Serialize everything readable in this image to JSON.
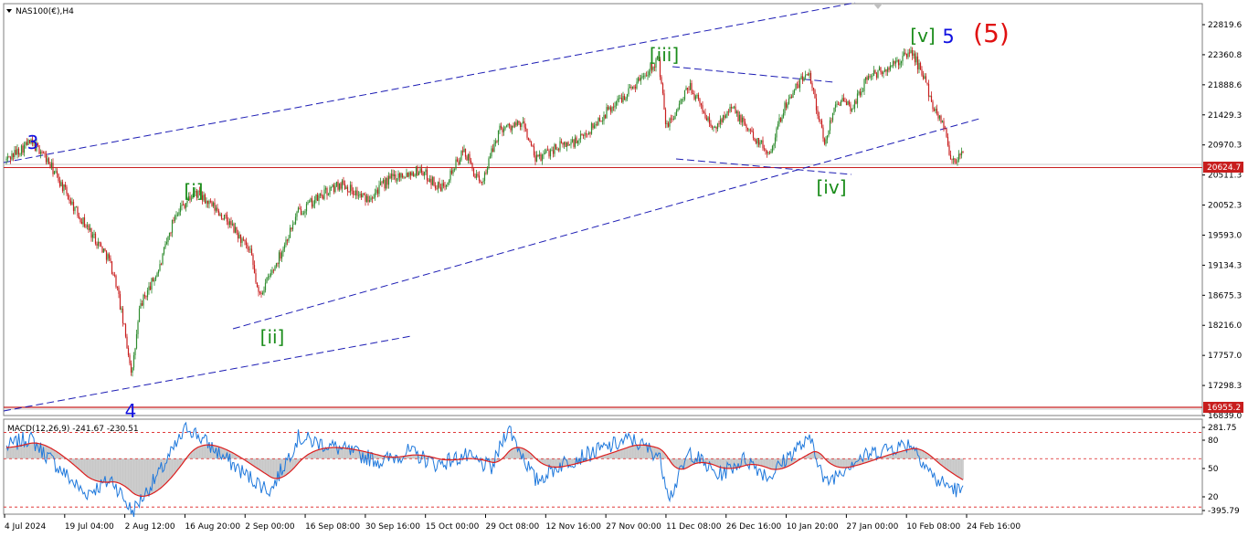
{
  "window": {
    "symbol_label": "NAS100(€),H4",
    "macd_label": "MACD(12,26,9) -241.67 -230.51"
  },
  "colors": {
    "bull_candle": "#2e8b2e",
    "bear_candle": "#c81e1e",
    "channel_line": "#1c1cb4",
    "price_line": "#c81e1e",
    "macd_line": "#1e78dc",
    "signal_line": "#dc1e1e",
    "macd_hist": "#c8c8c8",
    "level_dotted": "#dc1e1e"
  },
  "chart_data": [
    {
      "type": "candlestick",
      "timeframe": "H4",
      "price_axis": {
        "ylim": [
          16611.0,
          22966.0
        ],
        "ticks": [
          "22819.6",
          "22360.8",
          "21888.6",
          "21429.3",
          "20970.3",
          "20511.3",
          "20052.3",
          "19593.0",
          "19134.3",
          "18675.3",
          "18216.0",
          "17757.0",
          "17298.3",
          "16839.0"
        ]
      },
      "time_axis": {
        "ticks": [
          "4 Jul 2024",
          "19 Jul 04:00",
          "2 Aug 12:00",
          "16 Aug 20:00",
          "2 Sep 00:00",
          "16 Sep 08:00",
          "30 Sep 16:00",
          "15 Oct 00:00",
          "29 Oct 08:00",
          "12 Nov 16:00",
          "27 Nov 00:00",
          "11 Dec 08:00",
          "26 Dec 16:00",
          "10 Jan 20:00",
          "27 Jan 00:00",
          "10 Feb 08:00",
          "24 Feb 16:00"
        ]
      },
      "price_path": [
        {
          "date": "2024-07-04",
          "close": 20550
        },
        {
          "date": "2024-07-10",
          "close": 20820
        },
        {
          "date": "2024-07-13",
          "close": 20700
        },
        {
          "date": "2024-07-17",
          "close": 20300
        },
        {
          "date": "2024-07-22",
          "close": 19750
        },
        {
          "date": "2024-07-26",
          "close": 19400
        },
        {
          "date": "2024-07-30",
          "close": 19050
        },
        {
          "date": "2024-08-01",
          "close": 18650
        },
        {
          "date": "2024-08-05",
          "close": 17250
        },
        {
          "date": "2024-08-07",
          "close": 18300
        },
        {
          "date": "2024-08-12",
          "close": 18900
        },
        {
          "date": "2024-08-16",
          "close": 19750
        },
        {
          "date": "2024-08-21",
          "close": 20050
        },
        {
          "date": "2024-08-26",
          "close": 19800
        },
        {
          "date": "2024-08-30",
          "close": 19550
        },
        {
          "date": "2024-09-04",
          "close": 19100
        },
        {
          "date": "2024-09-06",
          "close": 18450
        },
        {
          "date": "2024-09-10",
          "close": 18900
        },
        {
          "date": "2024-09-16",
          "close": 19750
        },
        {
          "date": "2024-09-23",
          "close": 20050
        },
        {
          "date": "2024-09-27",
          "close": 20200
        },
        {
          "date": "2024-10-03",
          "close": 19950
        },
        {
          "date": "2024-10-10",
          "close": 20300
        },
        {
          "date": "2024-10-17",
          "close": 20400
        },
        {
          "date": "2024-10-22",
          "close": 20100
        },
        {
          "date": "2024-10-28",
          "close": 20700
        },
        {
          "date": "2024-11-01",
          "close": 20150
        },
        {
          "date": "2024-11-06",
          "close": 21050
        },
        {
          "date": "2024-11-12",
          "close": 21100
        },
        {
          "date": "2024-11-15",
          "close": 20550
        },
        {
          "date": "2024-11-20",
          "close": 20750
        },
        {
          "date": "2024-11-26",
          "close": 20850
        },
        {
          "date": "2024-12-03",
          "close": 21300
        },
        {
          "date": "2024-12-09",
          "close": 21650
        },
        {
          "date": "2024-12-16",
          "close": 22120
        },
        {
          "date": "2024-12-18",
          "close": 21050
        },
        {
          "date": "2024-12-20",
          "close": 21250
        },
        {
          "date": "2024-12-24",
          "close": 21700
        },
        {
          "date": "2024-12-30",
          "close": 21000
        },
        {
          "date": "2025-01-03",
          "close": 21400
        },
        {
          "date": "2025-01-08",
          "close": 21000
        },
        {
          "date": "2025-01-13",
          "close": 20650
        },
        {
          "date": "2025-01-17",
          "close": 21400
        },
        {
          "date": "2025-01-23",
          "close": 21950
        },
        {
          "date": "2025-01-27",
          "close": 20800
        },
        {
          "date": "2025-01-30",
          "close": 21500
        },
        {
          "date": "2025-02-03",
          "close": 21350
        },
        {
          "date": "2025-02-07",
          "close": 21850
        },
        {
          "date": "2025-02-12",
          "close": 21950
        },
        {
          "date": "2025-02-18",
          "close": 22230
        },
        {
          "date": "2025-02-21",
          "close": 21850
        },
        {
          "date": "2025-02-24",
          "close": 21300
        },
        {
          "date": "2025-02-26",
          "close": 21150
        },
        {
          "date": "2025-02-28",
          "close": 20550
        },
        {
          "date": "2025-03-03",
          "close": 20625
        }
      ],
      "price_labels": {
        "current": "20624.7",
        "support": "16955.2"
      },
      "horizontal_lines": [
        20624.7,
        16955.2,
        20680.0
      ],
      "wave_labels": {
        "w3": "3",
        "w4": "4",
        "wi": "[i]",
        "wii": "[ii]",
        "wiii": "[iii]",
        "wiv": "[iv]",
        "wv": "[v]",
        "w5": "5",
        "w5big": "(5)"
      }
    },
    {
      "type": "line",
      "name": "MACD(12,26,9)",
      "values_shown": {
        "macd": -241.67,
        "signal": -230.51
      },
      "ylim": [
        -395.79,
        281.75
      ],
      "ticks": [
        "281.75",
        "80",
        "50",
        "20",
        "-395.79"
      ],
      "levels": [
        187,
        0,
        -345
      ],
      "macd_path": [
        {
          "date": "2024-07-04",
          "v": 80
        },
        {
          "date": "2024-07-10",
          "v": 150
        },
        {
          "date": "2024-07-17",
          "v": -50
        },
        {
          "date": "2024-07-24",
          "v": -250
        },
        {
          "date": "2024-07-31",
          "v": -150
        },
        {
          "date": "2024-08-05",
          "v": -380
        },
        {
          "date": "2024-08-12",
          "v": -100
        },
        {
          "date": "2024-08-19",
          "v": 230
        },
        {
          "date": "2024-08-26",
          "v": 60
        },
        {
          "date": "2024-09-03",
          "v": -120
        },
        {
          "date": "2024-09-09",
          "v": -230
        },
        {
          "date": "2024-09-16",
          "v": 150
        },
        {
          "date": "2024-09-23",
          "v": 100
        },
        {
          "date": "2024-09-30",
          "v": 40
        },
        {
          "date": "2024-10-07",
          "v": -20
        },
        {
          "date": "2024-10-14",
          "v": 50
        },
        {
          "date": "2024-10-21",
          "v": -40
        },
        {
          "date": "2024-10-28",
          "v": 20
        },
        {
          "date": "2024-11-04",
          "v": -70
        },
        {
          "date": "2024-11-08",
          "v": 230
        },
        {
          "date": "2024-11-15",
          "v": -160
        },
        {
          "date": "2024-11-22",
          "v": -30
        },
        {
          "date": "2024-12-01",
          "v": 60
        },
        {
          "date": "2024-12-09",
          "v": 140
        },
        {
          "date": "2024-12-16",
          "v": 30
        },
        {
          "date": "2024-12-19",
          "v": -270
        },
        {
          "date": "2024-12-24",
          "v": 50
        },
        {
          "date": "2024-12-31",
          "v": -120
        },
        {
          "date": "2025-01-07",
          "v": 0
        },
        {
          "date": "2025-01-13",
          "v": -130
        },
        {
          "date": "2025-01-20",
          "v": 80
        },
        {
          "date": "2025-01-24",
          "v": 130
        },
        {
          "date": "2025-01-27",
          "v": -180
        },
        {
          "date": "2025-02-03",
          "v": -20
        },
        {
          "date": "2025-02-10",
          "v": 60
        },
        {
          "date": "2025-02-18",
          "v": 110
        },
        {
          "date": "2025-02-24",
          "v": -150
        },
        {
          "date": "2025-03-03",
          "v": -241.67
        }
      ]
    }
  ]
}
